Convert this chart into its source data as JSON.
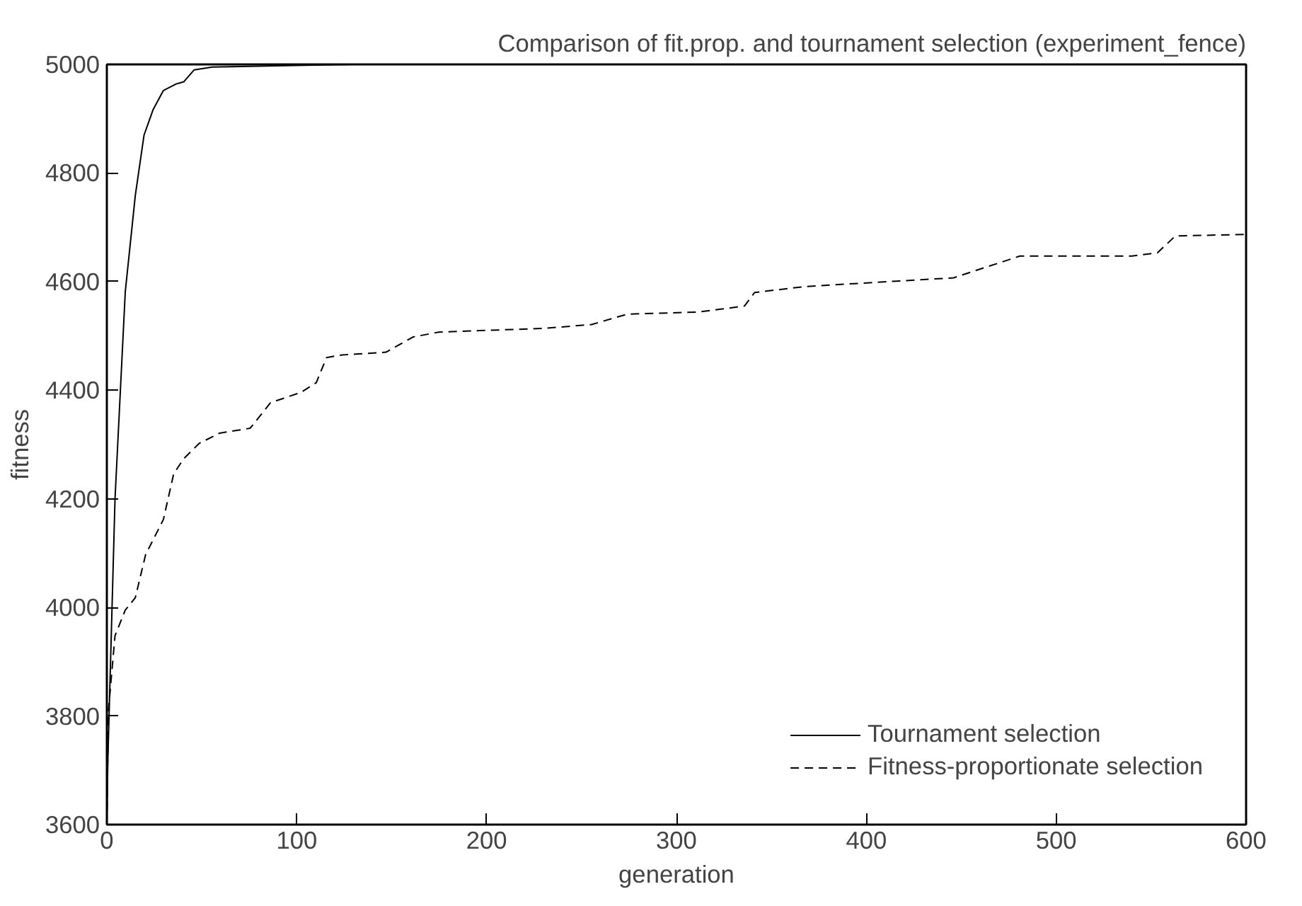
{
  "chart_data": {
    "type": "line",
    "title": "Comparison of fit.prop. and tournament selection (experiment_fence)",
    "xlabel": "generation",
    "ylabel": "fitness",
    "xlim": [
      0,
      600
    ],
    "ylim": [
      3600,
      5000
    ],
    "xticks": [
      0,
      100,
      200,
      300,
      400,
      500,
      600
    ],
    "yticks": [
      3600,
      3800,
      4000,
      4200,
      4400,
      4600,
      4800,
      5000
    ],
    "grid": false,
    "legend": "bottom right",
    "marker": "none",
    "series": [
      {
        "name": "Tournament selection",
        "color": "#000000",
        "line_style": "solid",
        "x": [
          0,
          0.5,
          4.3,
          9.7,
          15,
          19.6,
          24.4,
          29.8,
          36.5,
          40.5,
          46,
          55.5,
          98.5,
          130
        ],
        "values": [
          3600,
          3715,
          4200,
          4581,
          4759,
          4870,
          4917,
          4952,
          4964,
          4968,
          4990,
          4995,
          4998,
          5000
        ]
      },
      {
        "name": "Fitness-proportionate selection",
        "color": "#000000",
        "line_style": "dashed",
        "x": [
          0,
          0.8,
          4.3,
          9.7,
          15,
          20.4,
          29.8,
          35.2,
          40.5,
          48.6,
          59.4,
          75.5,
          86.2,
          102.3,
          110.3,
          115.7,
          123.8,
          147,
          161.3,
          174.8,
          231,
          255.3,
          274,
          311.7,
          335.8,
          341.2,
          368,
          446,
          480.8,
          539.8,
          553.3,
          562.7,
          600
        ],
        "values": [
          3600,
          3809,
          3948,
          3995,
          4018,
          4097,
          4162,
          4246,
          4274,
          4302,
          4321,
          4330,
          4377,
          4396,
          4414,
          4460,
          4465,
          4470,
          4498,
          4507,
          4514,
          4521,
          4540,
          4544,
          4555,
          4580,
          4591,
          4607,
          4647,
          4647,
          4653,
          4684,
          4687
        ]
      }
    ]
  }
}
